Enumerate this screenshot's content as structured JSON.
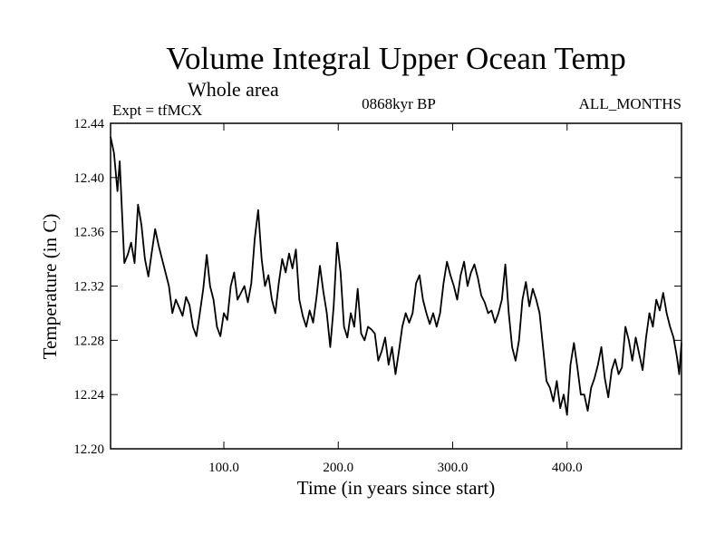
{
  "chart_data": {
    "type": "line",
    "title": "Volume Integral Upper Ocean Temp",
    "subtitle": "Whole area",
    "experiment_label": "Expt = tfMCX",
    "period_label": "0868kyr BP",
    "months_label": "ALL_MONTHS",
    "xlabel": "Time (in years since start)",
    "ylabel": "Temperature (in C)",
    "xlim": [
      1,
      500
    ],
    "ylim": [
      12.2,
      12.44
    ],
    "x_ticks": [
      100,
      200,
      300,
      400
    ],
    "x_tick_labels": [
      "100.0",
      "200.0",
      "300.0",
      "400.0"
    ],
    "y_ticks": [
      12.2,
      12.24,
      12.28,
      12.32,
      12.36,
      12.4,
      12.44
    ],
    "y_tick_labels": [
      "12.20",
      "12.24",
      "12.28",
      "12.32",
      "12.36",
      "12.40",
      "12.44"
    ],
    "grid": false,
    "series": [
      {
        "name": "Temperature",
        "color": "#000000",
        "points": [
          [
            1,
            12.43
          ],
          [
            4,
            12.418
          ],
          [
            7,
            12.39
          ],
          [
            9,
            12.412
          ],
          [
            11,
            12.375
          ],
          [
            13,
            12.337
          ],
          [
            16,
            12.343
          ],
          [
            19,
            12.352
          ],
          [
            22,
            12.337
          ],
          [
            25,
            12.38
          ],
          [
            28,
            12.365
          ],
          [
            31,
            12.34
          ],
          [
            34,
            12.327
          ],
          [
            37,
            12.345
          ],
          [
            40,
            12.362
          ],
          [
            43,
            12.35
          ],
          [
            46,
            12.34
          ],
          [
            49,
            12.33
          ],
          [
            52,
            12.32
          ],
          [
            55,
            12.3
          ],
          [
            58,
            12.31
          ],
          [
            61,
            12.304
          ],
          [
            64,
            12.298
          ],
          [
            67,
            12.312
          ],
          [
            70,
            12.306
          ],
          [
            73,
            12.29
          ],
          [
            76,
            12.283
          ],
          [
            79,
            12.3
          ],
          [
            82,
            12.318
          ],
          [
            85,
            12.343
          ],
          [
            88,
            12.32
          ],
          [
            91,
            12.31
          ],
          [
            94,
            12.29
          ],
          [
            97,
            12.283
          ],
          [
            100,
            12.3
          ],
          [
            103,
            12.295
          ],
          [
            106,
            12.32
          ],
          [
            109,
            12.33
          ],
          [
            112,
            12.31
          ],
          [
            115,
            12.315
          ],
          [
            118,
            12.32
          ],
          [
            121,
            12.308
          ],
          [
            124,
            12.322
          ],
          [
            127,
            12.355
          ],
          [
            130,
            12.376
          ],
          [
            133,
            12.34
          ],
          [
            136,
            12.32
          ],
          [
            139,
            12.328
          ],
          [
            142,
            12.31
          ],
          [
            145,
            12.3
          ],
          [
            148,
            12.322
          ],
          [
            151,
            12.34
          ],
          [
            154,
            12.33
          ],
          [
            157,
            12.344
          ],
          [
            160,
            12.333
          ],
          [
            163,
            12.347
          ],
          [
            166,
            12.31
          ],
          [
            169,
            12.298
          ],
          [
            172,
            12.29
          ],
          [
            175,
            12.302
          ],
          [
            178,
            12.293
          ],
          [
            181,
            12.312
          ],
          [
            184,
            12.335
          ],
          [
            187,
            12.316
          ],
          [
            190,
            12.3
          ],
          [
            193,
            12.275
          ],
          [
            196,
            12.305
          ],
          [
            199,
            12.352
          ],
          [
            202,
            12.33
          ],
          [
            205,
            12.29
          ],
          [
            208,
            12.282
          ],
          [
            211,
            12.3
          ],
          [
            214,
            12.29
          ],
          [
            217,
            12.318
          ],
          [
            220,
            12.285
          ],
          [
            223,
            12.28
          ],
          [
            226,
            12.29
          ],
          [
            229,
            12.288
          ],
          [
            232,
            12.285
          ],
          [
            235,
            12.265
          ],
          [
            238,
            12.272
          ],
          [
            241,
            12.282
          ],
          [
            244,
            12.262
          ],
          [
            247,
            12.275
          ],
          [
            250,
            12.255
          ],
          [
            253,
            12.272
          ],
          [
            256,
            12.29
          ],
          [
            259,
            12.3
          ],
          [
            262,
            12.293
          ],
          [
            265,
            12.3
          ],
          [
            268,
            12.322
          ],
          [
            271,
            12.328
          ],
          [
            274,
            12.31
          ],
          [
            277,
            12.3
          ],
          [
            280,
            12.292
          ],
          [
            283,
            12.3
          ],
          [
            286,
            12.29
          ],
          [
            289,
            12.3
          ],
          [
            292,
            12.322
          ],
          [
            295,
            12.338
          ],
          [
            298,
            12.328
          ],
          [
            301,
            12.32
          ],
          [
            304,
            12.31
          ],
          [
            307,
            12.328
          ],
          [
            310,
            12.338
          ],
          [
            313,
            12.32
          ],
          [
            316,
            12.33
          ],
          [
            319,
            12.336
          ],
          [
            322,
            12.326
          ],
          [
            325,
            12.313
          ],
          [
            328,
            12.308
          ],
          [
            331,
            12.3
          ],
          [
            334,
            12.302
          ],
          [
            337,
            12.293
          ],
          [
            340,
            12.3
          ],
          [
            343,
            12.31
          ],
          [
            346,
            12.336
          ],
          [
            349,
            12.3
          ],
          [
            352,
            12.275
          ],
          [
            355,
            12.265
          ],
          [
            358,
            12.28
          ],
          [
            361,
            12.31
          ],
          [
            364,
            12.323
          ],
          [
            367,
            12.305
          ],
          [
            370,
            12.318
          ],
          [
            373,
            12.31
          ],
          [
            376,
            12.3
          ],
          [
            379,
            12.275
          ],
          [
            382,
            12.25
          ],
          [
            385,
            12.245
          ],
          [
            388,
            12.235
          ],
          [
            391,
            12.25
          ],
          [
            394,
            12.23
          ],
          [
            397,
            12.24
          ],
          [
            400,
            12.225
          ],
          [
            403,
            12.262
          ],
          [
            406,
            12.278
          ],
          [
            409,
            12.26
          ],
          [
            412,
            12.24
          ],
          [
            415,
            12.24
          ],
          [
            418,
            12.228
          ],
          [
            421,
            12.245
          ],
          [
            424,
            12.252
          ],
          [
            427,
            12.262
          ],
          [
            430,
            12.275
          ],
          [
            433,
            12.252
          ],
          [
            436,
            12.238
          ],
          [
            439,
            12.258
          ],
          [
            442,
            12.266
          ],
          [
            445,
            12.255
          ],
          [
            448,
            12.26
          ],
          [
            451,
            12.29
          ],
          [
            454,
            12.28
          ],
          [
            457,
            12.265
          ],
          [
            460,
            12.282
          ],
          [
            463,
            12.27
          ],
          [
            466,
            12.258
          ],
          [
            469,
            12.282
          ],
          [
            472,
            12.3
          ],
          [
            475,
            12.29
          ],
          [
            478,
            12.31
          ],
          [
            481,
            12.302
          ],
          [
            484,
            12.315
          ],
          [
            487,
            12.3
          ],
          [
            490,
            12.29
          ],
          [
            493,
            12.282
          ],
          [
            496,
            12.268
          ],
          [
            498,
            12.255
          ],
          [
            500,
            12.278
          ]
        ]
      }
    ]
  }
}
